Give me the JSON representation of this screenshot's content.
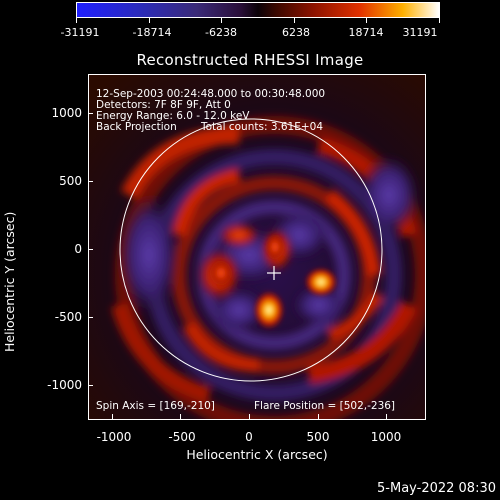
{
  "colorbar": {
    "ticks": [
      "-31191",
      "-18714",
      "-6238",
      "6238",
      "18714",
      "31191"
    ],
    "colors": [
      "#1f1fff",
      "#2a0f3a",
      "#0b0208",
      "#8a1200",
      "#ffb000",
      "#ffffff"
    ]
  },
  "title": "Reconstructed RHESSI Image",
  "info": {
    "line1": "12-Sep-2003 00:24:48.000 to 00:30:48.000",
    "line2": "Detectors: 7F 8F 9F, Att 0",
    "line3": "Energy Range: 6.0 - 12.0 keV",
    "line4a": "Back Projection",
    "line4b": "Total counts: 3.61E+04"
  },
  "footer": {
    "spin_axis": "Spin Axis = [169,-210]",
    "flare_position": "Flare Position = [502,-236]"
  },
  "axes": {
    "xlabel": "Heliocentric X (arcsec)",
    "ylabel": "Heliocentric Y (arcsec)",
    "xticks": [
      "-1000",
      "-500",
      "0",
      "500",
      "1000"
    ],
    "yticks": [
      "1000",
      "500",
      "0",
      "-500",
      "-1000"
    ]
  },
  "datestamp": "5-May-2022 08:30"
}
